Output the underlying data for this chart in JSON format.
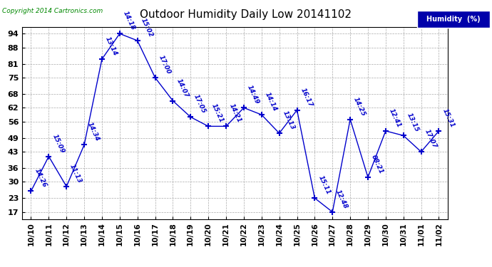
{
  "title": "Outdoor Humidity Daily Low 20141102",
  "copyright": "Copyright 2014 Cartronics.com",
  "legend_label": "Humidity  (%)",
  "x_labels": [
    "10/10",
    "10/11",
    "10/12",
    "10/13",
    "10/14",
    "10/15",
    "10/16",
    "10/17",
    "10/18",
    "10/19",
    "10/20",
    "10/21",
    "10/22",
    "10/23",
    "10/24",
    "10/25",
    "10/26",
    "10/27",
    "10/28",
    "10/29",
    "10/30",
    "10/31",
    "11/01",
    "11/02"
  ],
  "y_values": [
    26,
    41,
    28,
    46,
    83,
    94,
    91,
    75,
    65,
    58,
    54,
    54,
    62,
    59,
    51,
    61,
    23,
    17,
    57,
    32,
    52,
    50,
    43,
    52
  ],
  "point_labels": [
    "14:26",
    "15:09",
    "11:13",
    "14:34",
    "13:14",
    "14:18",
    "15:02",
    "17:00",
    "14:07",
    "17:05",
    "15:21",
    "14:21",
    "14:49",
    "14:14",
    "13:13",
    "16:17",
    "15:11",
    "12:48",
    "14:25",
    "08:21",
    "12:41",
    "13:15",
    "17:07",
    "15:31"
  ],
  "line_color": "#0000cc",
  "marker_color": "#0000cc",
  "background_color": "#ffffff",
  "grid_color": "#aaaaaa",
  "title_color": "#000000",
  "yticks": [
    17,
    23,
    30,
    36,
    43,
    49,
    56,
    62,
    68,
    75,
    81,
    88,
    94
  ],
  "ylim": [
    14,
    97
  ],
  "xlim": [
    -0.5,
    23.5
  ],
  "legend_bg": "#0000aa",
  "legend_text_color": "#ffffff",
  "copyright_color": "#008800"
}
